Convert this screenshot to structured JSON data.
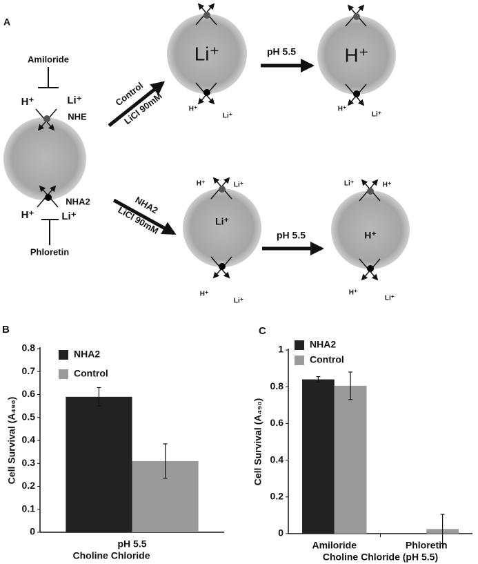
{
  "diagram": {
    "labels": [
      "A",
      "Amiloride",
      "H⁺",
      "Li⁺",
      "NHE",
      "NHA2",
      "H⁺",
      "Li⁺",
      "Phloretin",
      "Control",
      "LiCl 90mM",
      "NHA2",
      "LiCl 90mM",
      "Li⁺",
      "H⁺",
      "pH 5.5",
      "pH 5.5",
      "Li⁺",
      "H⁺",
      "H⁺",
      "Li⁺",
      "H⁺",
      "Li⁺",
      "H⁺",
      "Li⁺",
      "Li⁺",
      "H⁺",
      "H⁺",
      "Li⁺",
      "H⁺",
      "Li⁺"
    ]
  },
  "chart_data": [
    {
      "type": "bar",
      "panel": "B",
      "ylabel": "Cell Survival (A₄₉₀)",
      "categories": [
        "pH 5.5"
      ],
      "xlabel": "Choline Chloride",
      "series": [
        {
          "name": "NHA2",
          "color": "#222222",
          "values": [
            0.59
          ],
          "errors": [
            0.04
          ]
        },
        {
          "name": "Control",
          "color": "#9a9a9a",
          "values": [
            0.31
          ],
          "errors": [
            0.075
          ]
        }
      ],
      "ylim": [
        0,
        0.8
      ],
      "yticks": [
        0,
        0.1,
        0.2,
        0.3,
        0.4,
        0.5,
        0.6,
        0.7,
        0.8
      ]
    },
    {
      "type": "bar",
      "panel": "C",
      "ylabel": "Cell Survival (A₄₉₀)",
      "categories": [
        "Amiloride",
        "Phloretin"
      ],
      "xlabel": "Choline Chloride (pH 5.5)",
      "series": [
        {
          "name": "NHA2",
          "color": "#222222",
          "values": [
            0.84,
            0
          ],
          "errors": [
            0.015,
            null
          ]
        },
        {
          "name": "Control",
          "color": "#9a9a9a",
          "values": [
            0.805,
            0.025
          ],
          "errors": [
            0.075,
            0.08
          ]
        }
      ],
      "ylim": [
        0,
        1
      ],
      "yticks": [
        0,
        0.2,
        0.4,
        0.6,
        0.8,
        1
      ]
    }
  ]
}
